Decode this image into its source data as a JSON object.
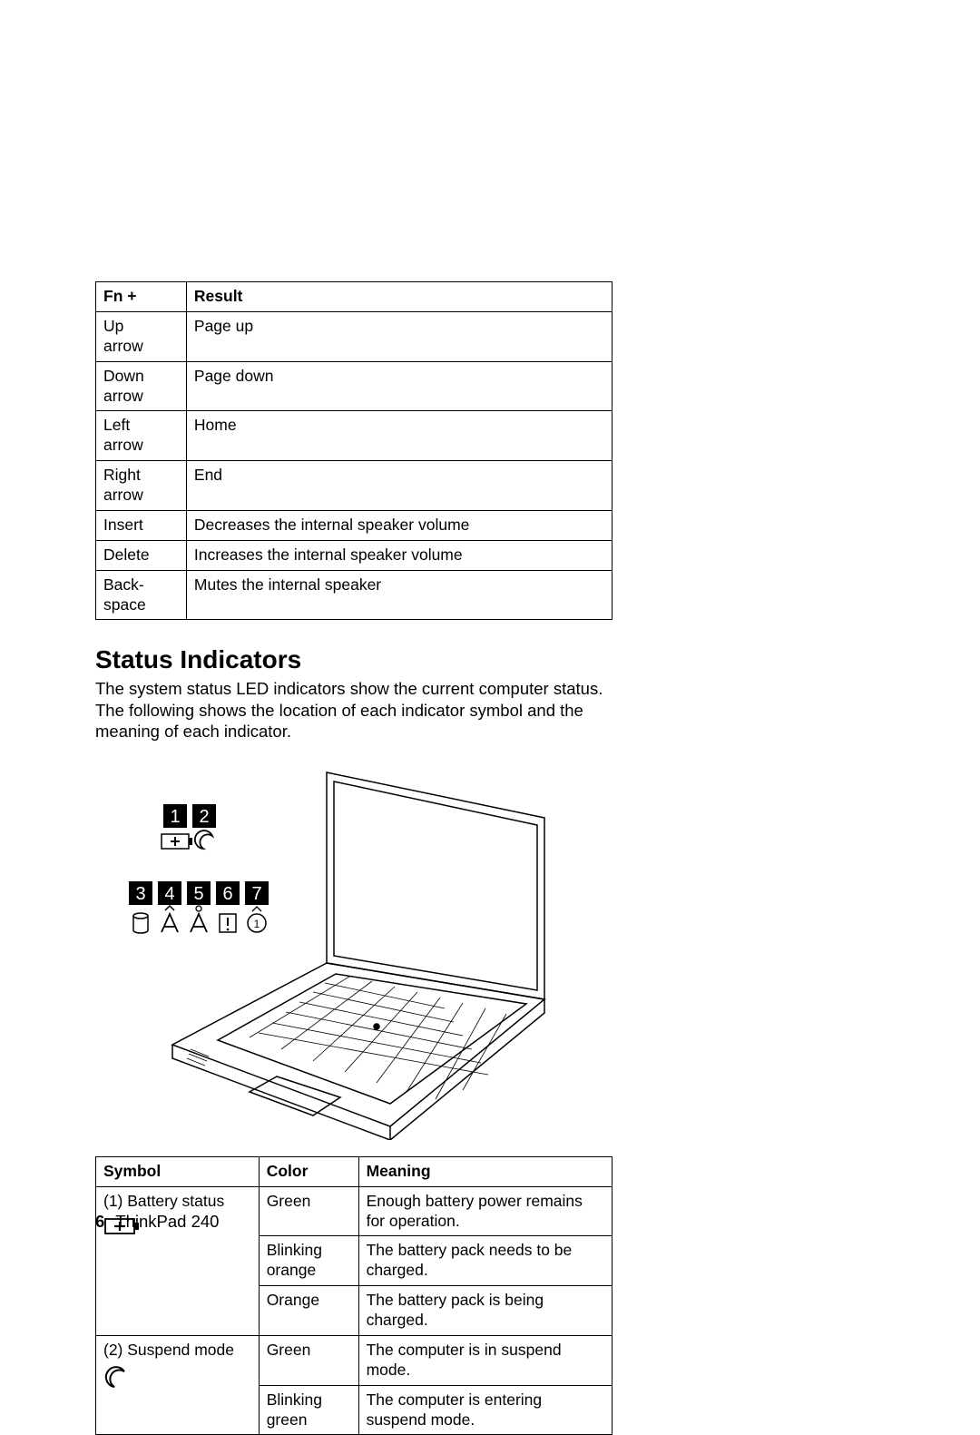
{
  "fn_table": {
    "headers": [
      "Fn +",
      "Result"
    ],
    "rows": [
      [
        "Up arrow",
        "Page up"
      ],
      [
        "Down arrow",
        "Page down"
      ],
      [
        "Left arrow",
        "Home"
      ],
      [
        "Right arrow",
        "End"
      ],
      [
        "Insert",
        "Decreases the internal speaker volume"
      ],
      [
        "Delete",
        "Increases the internal speaker volume"
      ],
      [
        "Back-space",
        "Mutes the internal speaker"
      ]
    ]
  },
  "section_heading": "Status Indicators",
  "section_body": "The system status LED indicators show the current computer status. The following shows the location of each indicator symbol and the meaning of each indicator.",
  "status_table": {
    "headers": [
      "Symbol",
      "Color",
      "Meaning"
    ],
    "rows": [
      {
        "symbol": "(1) Battery status",
        "icon": "battery",
        "color": "Green",
        "meaning": "Enough battery power remains for operation.",
        "rowspan": 3
      },
      {
        "symbol": "",
        "icon": "",
        "color": "Blinking orange",
        "meaning": "The battery pack needs to be charged.",
        "rowspan": 0
      },
      {
        "symbol": "",
        "icon": "",
        "color": "Orange",
        "meaning": "The battery pack is being charged.",
        "rowspan": 0
      },
      {
        "symbol": "(2) Suspend mode",
        "icon": "moon",
        "color": "Green",
        "meaning": "The computer is in suspend mode.",
        "rowspan": 2
      },
      {
        "symbol": "",
        "icon": "",
        "color": "Blinking green",
        "meaning": "The computer is entering suspend mode.",
        "rowspan": 0
      }
    ]
  },
  "diagram": {
    "callouts_top": [
      "1",
      "2"
    ],
    "callouts_bottom": [
      "3",
      "4",
      "5",
      "6",
      "7"
    ]
  },
  "footer": {
    "page": "6",
    "title": "ThinkPad 240"
  }
}
